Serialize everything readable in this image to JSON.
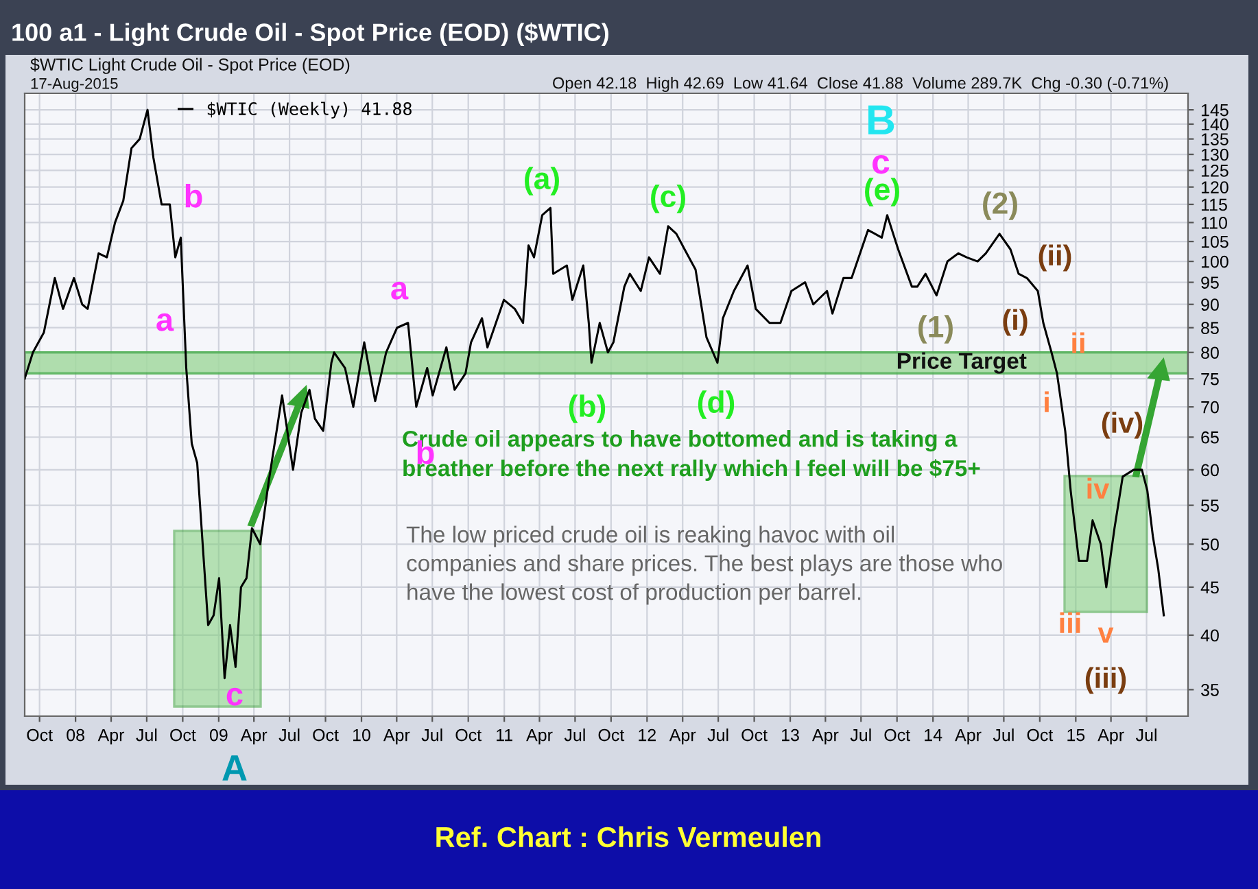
{
  "chart_data": {
    "type": "line",
    "title": "100 a1 - Light Crude Oil - Spot Price (EOD) ($WTIC)",
    "subtitle": "$WTIC Light Crude Oil - Spot Price (EOD)",
    "series": [
      {
        "name": "$WTIC (Weekly) 41.88",
        "color": "#000000",
        "x": [
          "2007-08-24",
          "2007-09-14",
          "2007-10-12",
          "2007-11-09",
          "2007-11-30",
          "2007-12-28",
          "2008-01-18",
          "2008-02-01",
          "2008-02-29",
          "2008-03-21",
          "2008-04-11",
          "2008-05-02",
          "2008-05-23",
          "2008-06-13",
          "2008-07-03",
          "2008-07-18",
          "2008-08-08",
          "2008-08-29",
          "2008-09-12",
          "2008-09-26",
          "2008-10-10",
          "2008-10-24",
          "2008-11-07",
          "2008-11-21",
          "2008-12-05",
          "2008-12-19",
          "2009-01-02",
          "2009-01-16",
          "2009-01-30",
          "2009-02-13",
          "2009-02-27",
          "2009-03-13",
          "2009-03-27",
          "2009-04-17",
          "2009-05-08",
          "2009-05-29",
          "2009-06-12",
          "2009-07-10",
          "2009-07-31",
          "2009-08-21",
          "2009-09-04",
          "2009-09-25",
          "2009-10-16",
          "2009-10-23",
          "2009-11-20",
          "2009-12-11",
          "2010-01-08",
          "2010-02-05",
          "2010-03-05",
          "2010-04-02",
          "2010-04-30",
          "2010-05-21",
          "2010-06-18",
          "2010-07-02",
          "2010-08-06",
          "2010-08-27",
          "2010-09-24",
          "2010-10-08",
          "2010-11-05",
          "2010-11-19",
          "2010-12-31",
          "2011-01-28",
          "2011-02-18",
          "2011-03-04",
          "2011-03-18",
          "2011-04-08",
          "2011-04-29",
          "2011-05-06",
          "2011-06-10",
          "2011-06-24",
          "2011-07-22",
          "2011-08-05",
          "2011-08-12",
          "2011-09-02",
          "2011-09-23",
          "2011-10-07",
          "2011-11-04",
          "2011-11-18",
          "2011-12-16",
          "2012-01-06",
          "2012-02-03",
          "2012-02-24",
          "2012-03-16",
          "2012-04-06",
          "2012-05-04",
          "2012-06-01",
          "2012-06-29",
          "2012-07-13",
          "2012-08-10",
          "2012-09-14",
          "2012-10-05",
          "2012-11-09",
          "2012-12-07",
          "2013-01-04",
          "2013-02-08",
          "2013-03-01",
          "2013-04-05",
          "2013-04-19",
          "2013-05-17",
          "2013-06-07",
          "2013-07-19",
          "2013-08-23",
          "2013-09-06",
          "2013-10-04",
          "2013-11-08",
          "2013-11-22",
          "2013-12-13",
          "2014-01-10",
          "2014-02-07",
          "2014-03-07",
          "2014-03-28",
          "2014-04-25",
          "2014-05-16",
          "2014-06-20",
          "2014-07-18",
          "2014-08-08",
          "2014-08-29",
          "2014-09-26",
          "2014-10-10",
          "2014-10-31",
          "2014-11-14",
          "2014-12-05",
          "2014-12-19",
          "2015-01-09",
          "2015-01-30",
          "2015-02-13",
          "2015-03-06",
          "2015-03-20",
          "2015-04-10",
          "2015-05-01",
          "2015-05-29",
          "2015-06-19",
          "2015-07-03",
          "2015-07-17",
          "2015-07-31",
          "2015-08-14"
        ],
        "values": [
          75,
          80,
          84,
          96,
          89,
          96,
          90,
          89,
          102,
          101,
          110,
          116,
          132,
          135,
          145,
          129,
          115,
          115,
          101,
          106,
          77,
          64,
          61,
          50,
          41,
          42,
          46,
          36,
          41,
          37,
          45,
          46,
          52,
          50,
          58,
          66,
          72,
          60,
          69,
          73,
          68,
          66,
          78,
          80,
          77,
          70,
          82,
          71,
          80,
          85,
          86,
          70,
          77,
          72,
          81,
          73,
          76,
          82,
          87,
          81,
          91,
          89,
          86,
          104,
          101,
          112,
          114,
          97,
          99,
          91,
          99,
          86,
          78,
          86,
          80,
          82,
          94,
          97,
          93,
          101,
          97,
          109,
          107,
          103,
          98,
          83,
          78,
          87,
          93,
          99,
          89,
          86,
          86,
          93,
          95,
          90,
          93,
          88,
          96,
          96,
          108,
          106,
          112,
          103,
          94,
          94,
          97,
          92,
          100,
          102,
          101,
          100,
          102,
          107,
          103,
          97,
          96,
          93,
          86,
          80,
          76,
          66,
          57,
          48,
          48,
          53,
          50,
          45,
          52,
          59,
          60,
          60,
          57,
          51,
          47,
          42
        ]
      }
    ],
    "ylim": [
      32.8,
      151
    ],
    "log": true,
    "yticks": [
      35,
      40,
      45,
      50,
      55,
      60,
      65,
      70,
      75,
      80,
      85,
      90,
      95,
      100,
      105,
      110,
      115,
      120,
      125,
      130,
      135,
      140,
      145
    ],
    "xlim": [
      "2007-08-24",
      "2015-10-15"
    ],
    "xticks": [
      {
        "value": "2007-10-01",
        "label": "Oct"
      },
      {
        "value": "2008-01-01",
        "label": "08"
      },
      {
        "value": "2008-04-01",
        "label": "Apr"
      },
      {
        "value": "2008-07-01",
        "label": "Jul"
      },
      {
        "value": "2008-10-01",
        "label": "Oct"
      },
      {
        "value": "2009-01-01",
        "label": "09"
      },
      {
        "value": "2009-04-01",
        "label": "Apr"
      },
      {
        "value": "2009-07-01",
        "label": "Jul"
      },
      {
        "value": "2009-10-01",
        "label": "Oct"
      },
      {
        "value": "2010-01-01",
        "label": "10"
      },
      {
        "value": "2010-04-01",
        "label": "Apr"
      },
      {
        "value": "2010-07-01",
        "label": "Jul"
      },
      {
        "value": "2010-10-01",
        "label": "Oct"
      },
      {
        "value": "2011-01-01",
        "label": "11"
      },
      {
        "value": "2011-04-01",
        "label": "Apr"
      },
      {
        "value": "2011-07-01",
        "label": "Jul"
      },
      {
        "value": "2011-10-01",
        "label": "Oct"
      },
      {
        "value": "2012-01-01",
        "label": "12"
      },
      {
        "value": "2012-04-01",
        "label": "Apr"
      },
      {
        "value": "2012-07-01",
        "label": "Jul"
      },
      {
        "value": "2012-10-01",
        "label": "Oct"
      },
      {
        "value": "2013-01-01",
        "label": "13"
      },
      {
        "value": "2013-04-01",
        "label": "Apr"
      },
      {
        "value": "2013-07-01",
        "label": "Jul"
      },
      {
        "value": "2013-10-01",
        "label": "Oct"
      },
      {
        "value": "2014-01-01",
        "label": "14"
      },
      {
        "value": "2014-04-01",
        "label": "Apr"
      },
      {
        "value": "2014-07-01",
        "label": "Jul"
      },
      {
        "value": "2014-10-01",
        "label": "Oct"
      },
      {
        "value": "2015-01-01",
        "label": "15"
      },
      {
        "value": "2015-04-01",
        "label": "Apr"
      },
      {
        "value": "2015-07-01",
        "label": "Jul"
      }
    ],
    "grid": true,
    "legend": "top left",
    "marker": "none",
    "line_style": "solid",
    "bands": [
      {
        "axis": "y",
        "from": 76,
        "to": 80,
        "label": "Price Target",
        "color": "#a3d9a0"
      }
    ],
    "annotations": [
      "a",
      "b",
      "c",
      "A",
      "a",
      "b",
      "(a)",
      "(b)",
      "(c)",
      "(d)",
      "B",
      "c",
      "(e)",
      "(1)",
      "(2)",
      "(i)",
      "(ii)",
      "ii",
      "i",
      "iii",
      "iv",
      "v",
      "(iii)",
      "(iv)",
      "17-Aug-2015",
      "Open 42.18  High 42.69  Low 41.64  Close 41.88  Volume 289.7K  Chg -0.30 (-0.71%)",
      "Crude oil appears to have bottomed and is taking a\nbreather before the next rally which I feel will be $75+",
      "The low priced crude oil is reaking havoc with oil\ncompanies and share prices. The best plays are those who\nhave the lowest cost of production per barrel.",
      "Ref. Chart : Chris Vermeulen"
    ]
  }
}
